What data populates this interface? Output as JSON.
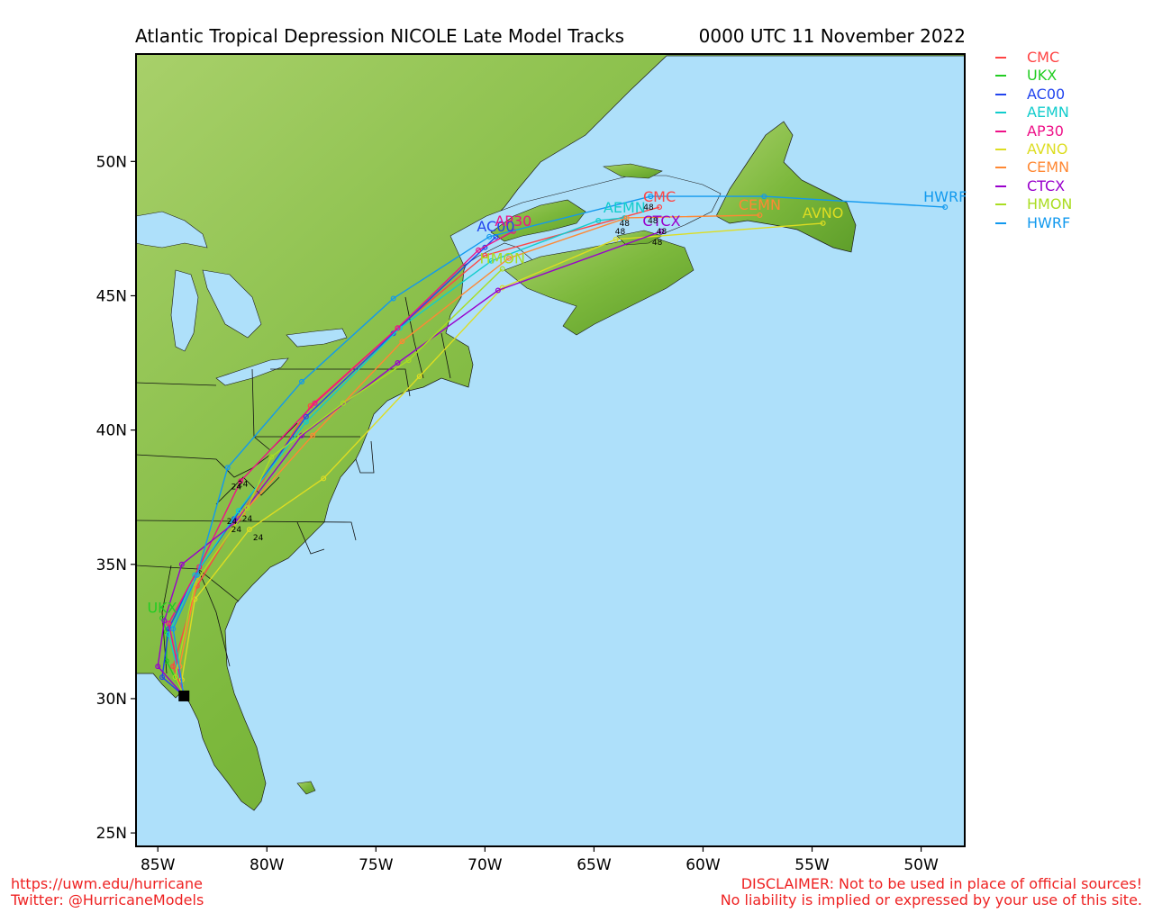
{
  "title": {
    "left": "Atlantic Tropical Depression NICOLE Late Model Tracks",
    "right": "0000 UTC 11 November 2022"
  },
  "footer": {
    "url": "https://uwm.edu/hurricane",
    "twitter": "Twitter: @HurricaneModels",
    "disclaimer1": "DISCLAIMER: Not to be used in place of official sources!",
    "disclaimer2": "No liability is implied or expressed by your use of this site."
  },
  "legend": [
    {
      "name": "CMC",
      "color": "#ff4444"
    },
    {
      "name": "UKX",
      "color": "#22cc22"
    },
    {
      "name": "AC00",
      "color": "#2244ee"
    },
    {
      "name": "AEMN",
      "color": "#11cccc"
    },
    {
      "name": "AP30",
      "color": "#ee1188"
    },
    {
      "name": "AVNO",
      "color": "#dddd22"
    },
    {
      "name": "CEMN",
      "color": "#ff8833"
    },
    {
      "name": "CTCX",
      "color": "#9900cc"
    },
    {
      "name": "HMON",
      "color": "#aadd22"
    },
    {
      "name": "HWRF",
      "color": "#1199ee"
    }
  ],
  "axes": {
    "x_ticks": [
      "85W",
      "80W",
      "75W",
      "70W",
      "65W",
      "60W",
      "55W",
      "50W"
    ],
    "y_ticks": [
      "25N",
      "30N",
      "35N",
      "40N",
      "45N",
      "50N"
    ],
    "lon_range": [
      -86,
      -48
    ],
    "lat_range": [
      24.5,
      54
    ]
  },
  "tracks": [
    {
      "name": "CMC",
      "color": "#ff4444",
      "label": "CMC",
      "points": [
        [
          -83.8,
          30.1
        ],
        [
          -84.3,
          31.2
        ],
        [
          -83.2,
          34.2
        ],
        [
          -81.3,
          36.7
        ],
        [
          -78.0,
          40.9
        ],
        [
          -74.0,
          43.8
        ],
        [
          -70.0,
          46.5
        ],
        [
          -62.0,
          48.3
        ]
      ]
    },
    {
      "name": "UKX",
      "color": "#22cc22",
      "label": "UKX",
      "points": [
        [
          -83.8,
          30.1
        ],
        [
          -84.6,
          31.4
        ],
        [
          -84.6,
          32.5
        ],
        [
          -84.8,
          33.0
        ]
      ]
    },
    {
      "name": "AC00",
      "color": "#2244ee",
      "label": "AC00",
      "points": [
        [
          -83.8,
          30.1
        ],
        [
          -84.8,
          30.8
        ],
        [
          -84.5,
          32.6
        ],
        [
          -83.3,
          34.6
        ],
        [
          -81.5,
          36.7
        ],
        [
          -78.2,
          40.5
        ],
        [
          -74.2,
          43.6
        ],
        [
          -70.0,
          46.8
        ],
        [
          -69.5,
          47.2
        ]
      ]
    },
    {
      "name": "AEMN",
      "color": "#11cccc",
      "label": "AEMN",
      "points": [
        [
          -83.8,
          30.1
        ],
        [
          -84.5,
          32.4
        ],
        [
          -83.3,
          34.6
        ],
        [
          -81.3,
          37.0
        ],
        [
          -78.2,
          40.3
        ],
        [
          -73.9,
          43.8
        ],
        [
          -69.7,
          46.3
        ],
        [
          -64.8,
          47.8
        ],
        [
          -63.6,
          47.9
        ]
      ]
    },
    {
      "name": "AP30",
      "color": "#ee1188",
      "label": "AP30",
      "points": [
        [
          -83.8,
          30.1
        ],
        [
          -84.5,
          32.8
        ],
        [
          -83.1,
          34.9
        ],
        [
          -81.2,
          38.1
        ],
        [
          -77.8,
          41.0
        ],
        [
          -74.0,
          43.8
        ],
        [
          -70.3,
          46.7
        ],
        [
          -68.7,
          47.4
        ]
      ]
    },
    {
      "name": "AVNO",
      "color": "#dddd22",
      "label": "AVNO",
      "points": [
        [
          -83.8,
          30.1
        ],
        [
          -83.9,
          30.7
        ],
        [
          -83.3,
          33.7
        ],
        [
          -80.8,
          36.3
        ],
        [
          -77.4,
          38.2
        ],
        [
          -73.0,
          42.0
        ],
        [
          -69.2,
          45.3
        ],
        [
          -64.0,
          47.1
        ],
        [
          -54.5,
          47.7
        ]
      ]
    },
    {
      "name": "CEMN",
      "color": "#ff8833",
      "label": "CEMN",
      "points": [
        [
          -83.8,
          30.1
        ],
        [
          -84.0,
          31.2
        ],
        [
          -83.2,
          34.4
        ],
        [
          -81.1,
          36.9
        ],
        [
          -77.9,
          39.8
        ],
        [
          -73.8,
          43.3
        ],
        [
          -68.9,
          46.4
        ],
        [
          -63.5,
          47.9
        ],
        [
          -57.4,
          48.0
        ]
      ]
    },
    {
      "name": "CTCX",
      "color": "#9900cc",
      "label": "CTCX",
      "points": [
        [
          -83.8,
          30.1
        ],
        [
          -85.0,
          31.2
        ],
        [
          -84.7,
          32.9
        ],
        [
          -83.9,
          35.0
        ],
        [
          -81.4,
          36.6
        ],
        [
          -78.4,
          39.8
        ],
        [
          -74.0,
          42.5
        ],
        [
          -69.4,
          45.2
        ],
        [
          -61.9,
          47.4
        ]
      ]
    },
    {
      "name": "HMON",
      "color": "#aadd22",
      "label": "HMON",
      "points": [
        [
          -83.8,
          30.1
        ],
        [
          -84.2,
          30.8
        ],
        [
          -83.3,
          34.3
        ],
        [
          -80.9,
          37.1
        ],
        [
          -79.8,
          39.0
        ],
        [
          -76.5,
          41.0
        ],
        [
          -73.5,
          42.6
        ],
        [
          -69.2,
          46.0
        ]
      ]
    },
    {
      "name": "HWRF",
      "color": "#1199ee",
      "label": "HWRF",
      "points": [
        [
          -83.8,
          30.1
        ],
        [
          -84.3,
          32.6
        ],
        [
          -83.2,
          34.6
        ],
        [
          -81.8,
          38.6
        ],
        [
          -78.4,
          41.8
        ],
        [
          -74.2,
          44.9
        ],
        [
          -69.8,
          47.2
        ],
        [
          -62.4,
          48.7
        ],
        [
          -57.2,
          48.7
        ],
        [
          -48.9,
          48.3
        ]
      ]
    }
  ],
  "time_labels": [
    {
      "text": "24",
      "lat": 37.8,
      "lon": -81.4
    },
    {
      "text": "24",
      "lat": 37.9,
      "lon": -81.1
    },
    {
      "text": "24",
      "lat": 36.5,
      "lon": -81.6
    },
    {
      "text": "24",
      "lat": 36.2,
      "lon": -81.4
    },
    {
      "text": "24",
      "lat": 36.6,
      "lon": -80.9
    },
    {
      "text": "24",
      "lat": 35.9,
      "lon": -80.4
    },
    {
      "text": "48",
      "lat": 48.2,
      "lon": -62.5
    },
    {
      "text": "48",
      "lat": 47.6,
      "lon": -63.6
    },
    {
      "text": "48",
      "lat": 47.7,
      "lon": -62.3
    },
    {
      "text": "48",
      "lat": 47.3,
      "lon": -63.8
    },
    {
      "text": "48",
      "lat": 47.3,
      "lon": -61.9
    },
    {
      "text": "48",
      "lat": 46.9,
      "lon": -62.1
    }
  ],
  "colors": {
    "ocean": "#aee0fa",
    "land": "#6faa2e",
    "land_high": "#b7d97c",
    "border": "#000000"
  }
}
